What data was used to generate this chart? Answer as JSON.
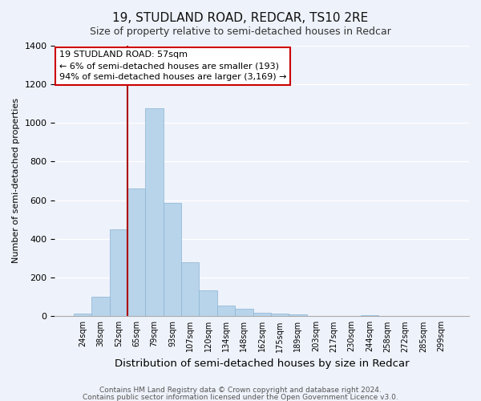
{
  "title": "19, STUDLAND ROAD, REDCAR, TS10 2RE",
  "subtitle": "Size of property relative to semi-detached houses in Redcar",
  "xlabel": "Distribution of semi-detached houses by size in Redcar",
  "ylabel": "Number of semi-detached properties",
  "bin_labels": [
    "24sqm",
    "38sqm",
    "52sqm",
    "65sqm",
    "79sqm",
    "93sqm",
    "107sqm",
    "120sqm",
    "134sqm",
    "148sqm",
    "162sqm",
    "175sqm",
    "189sqm",
    "203sqm",
    "217sqm",
    "230sqm",
    "244sqm",
    "258sqm",
    "272sqm",
    "285sqm",
    "299sqm"
  ],
  "bar_heights": [
    12,
    100,
    450,
    660,
    1075,
    585,
    278,
    135,
    57,
    40,
    18,
    15,
    10,
    3,
    2,
    2,
    5,
    2,
    1,
    1,
    1
  ],
  "bar_color": "#b8d4ea",
  "bar_edge_color": "#8ab4d4",
  "vline_color": "#aa0000",
  "annotation_title": "19 STUDLAND ROAD: 57sqm",
  "annotation_line1": "← 6% of semi-detached houses are smaller (193)",
  "annotation_line2": "94% of semi-detached houses are larger (3,169) →",
  "annotation_box_color": "#ffffff",
  "annotation_border_color": "#cc0000",
  "ylim": [
    0,
    1400
  ],
  "yticks": [
    0,
    200,
    400,
    600,
    800,
    1000,
    1200,
    1400
  ],
  "footer_line1": "Contains HM Land Registry data © Crown copyright and database right 2024.",
  "footer_line2": "Contains public sector information licensed under the Open Government Licence v3.0.",
  "bg_color": "#eef2fa",
  "grid_color": "#ffffff",
  "title_fontsize": 11,
  "subtitle_fontsize": 9
}
